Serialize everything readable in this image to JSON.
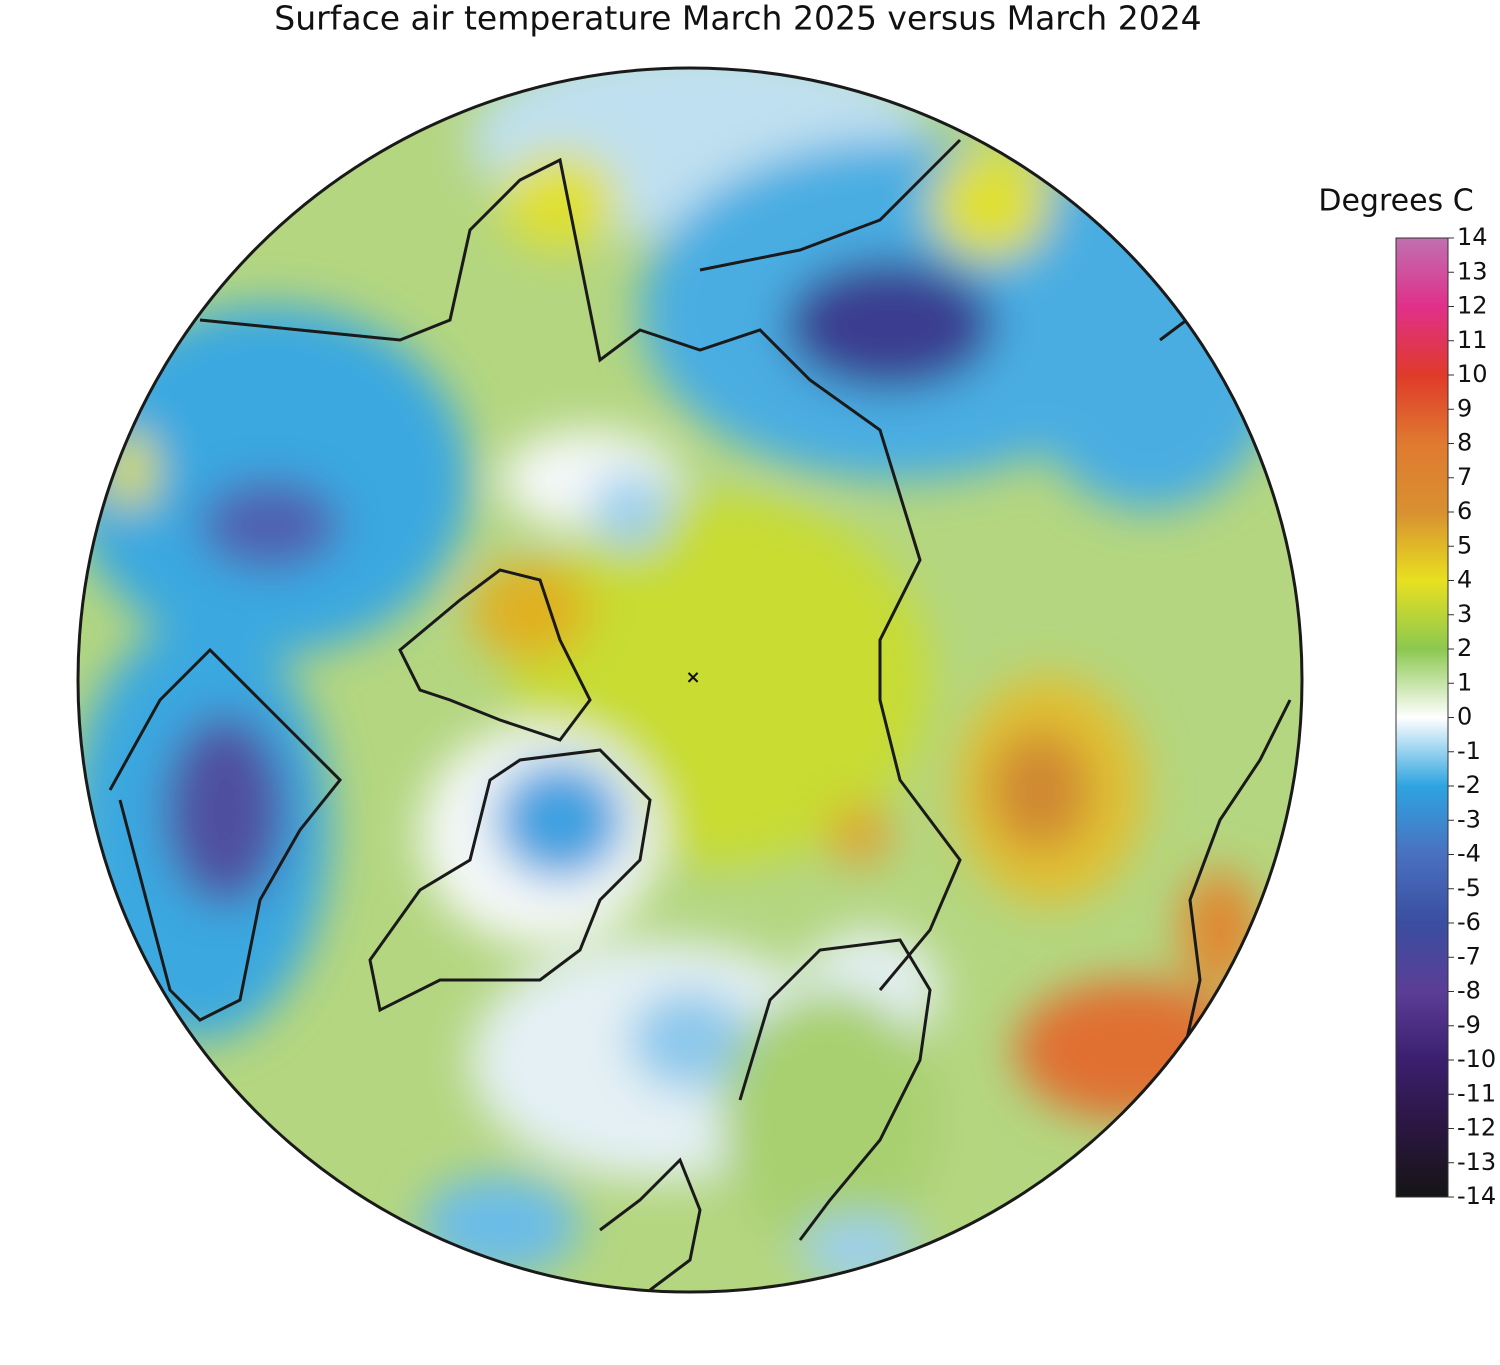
{
  "title": "Surface air temperature March 2025 versus March 2024",
  "colorbar": {
    "label": "Degrees C",
    "lim": [
      -14,
      14
    ],
    "ticks": [
      14,
      13,
      12,
      11,
      10,
      9,
      8,
      7,
      6,
      5,
      4,
      3,
      2,
      1,
      0,
      -1,
      -2,
      -3,
      -4,
      -5,
      -6,
      -7,
      -8,
      -9,
      -10,
      -11,
      -12,
      -13,
      -14
    ],
    "colors": [
      "#151515",
      "#2a1640",
      "#3b1f6e",
      "#5b3d96",
      "#3a4ea0",
      "#4a70c0",
      "#2ea4e0",
      "#ffffff",
      "#8cc850",
      "#e8e020",
      "#d89030",
      "#e07a30",
      "#e03a2a",
      "#e0308a",
      "#c070b0"
    ]
  }
}
